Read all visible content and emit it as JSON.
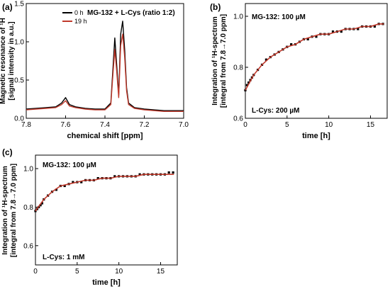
{
  "chart_data": [
    {
      "panel_label": "(a)",
      "type": "line",
      "annotation": "MG-132 + L-Cys (ratio 1:2)",
      "xlabel": "chemical shift [ppm]",
      "ylabel_lines": [
        "Magnetic resonance of ¹H",
        "[signal intensity in a.u.]"
      ],
      "xlim": [
        7.8,
        7.0
      ],
      "ylim": [
        0.0,
        1.5
      ],
      "x_ticks": [
        "7.8",
        "7.6",
        "7.4",
        "7.2",
        "7.0"
      ],
      "y_ticks": [
        "0.0",
        "0.5",
        "1.0",
        "1.5"
      ],
      "legend": [
        {
          "label": "0 h",
          "color": "#000000"
        },
        {
          "label": "19 h",
          "color": "#c0392b"
        }
      ],
      "series": [
        {
          "name": "0 h",
          "color": "#000000",
          "x": [
            7.8,
            7.75,
            7.7,
            7.65,
            7.62,
            7.6,
            7.58,
            7.55,
            7.5,
            7.45,
            7.4,
            7.37,
            7.36,
            7.35,
            7.34,
            7.33,
            7.32,
            7.31,
            7.3,
            7.29,
            7.28,
            7.25,
            7.2,
            7.15,
            7.1,
            7.05,
            7.0
          ],
          "y": [
            0.12,
            0.13,
            0.14,
            0.15,
            0.2,
            0.27,
            0.18,
            0.15,
            0.13,
            0.12,
            0.12,
            0.2,
            0.62,
            1.05,
            0.68,
            0.3,
            1.1,
            1.27,
            0.9,
            0.4,
            0.2,
            0.14,
            0.12,
            0.11,
            0.1,
            0.1,
            0.1
          ]
        },
        {
          "name": "19 h",
          "color": "#c0392b",
          "x": [
            7.8,
            7.75,
            7.7,
            7.65,
            7.62,
            7.6,
            7.58,
            7.55,
            7.5,
            7.45,
            7.4,
            7.37,
            7.36,
            7.35,
            7.34,
            7.33,
            7.32,
            7.31,
            7.3,
            7.29,
            7.28,
            7.25,
            7.2,
            7.15,
            7.1,
            7.05,
            7.0
          ],
          "y": [
            0.11,
            0.12,
            0.13,
            0.14,
            0.18,
            0.23,
            0.16,
            0.14,
            0.12,
            0.11,
            0.11,
            0.18,
            0.55,
            0.9,
            0.6,
            0.27,
            0.95,
            1.1,
            0.8,
            0.36,
            0.18,
            0.13,
            0.11,
            0.1,
            0.09,
            0.09,
            0.09
          ]
        }
      ]
    },
    {
      "panel_label": "(b)",
      "type": "scatter",
      "annotation_top": "MG-132: 100 µM",
      "annotation_bottom": "L-Cys: 200 µM",
      "xlabel": "time [h]",
      "ylabel_lines": [
        "Integration of ¹H-spectrum",
        "[integral from 7.8→7.0 ppm]"
      ],
      "xlim": [
        0,
        17
      ],
      "ylim": [
        0.6,
        1.05
      ],
      "x_ticks": [
        "0",
        "5",
        "10",
        "15"
      ],
      "y_ticks": [
        "0.6",
        "0.8",
        "1.0"
      ],
      "point_color": "#000000",
      "fit_color": "#c0392b",
      "points": {
        "x": [
          0.0,
          0.2,
          0.4,
          0.6,
          0.8,
          1.0,
          1.5,
          2.0,
          2.5,
          3.0,
          3.5,
          4.0,
          4.5,
          5.0,
          5.5,
          6.0,
          6.5,
          7.0,
          7.5,
          8.0,
          8.5,
          9.0,
          9.5,
          10.0,
          10.5,
          11.0,
          11.5,
          12.0,
          12.5,
          13.0,
          13.5,
          14.0,
          14.5,
          15.0,
          15.5,
          16.0,
          16.5
        ],
        "y": [
          0.71,
          0.73,
          0.74,
          0.75,
          0.76,
          0.77,
          0.79,
          0.81,
          0.83,
          0.84,
          0.85,
          0.86,
          0.87,
          0.88,
          0.89,
          0.89,
          0.9,
          0.91,
          0.91,
          0.92,
          0.92,
          0.93,
          0.93,
          0.93,
          0.94,
          0.94,
          0.94,
          0.95,
          0.95,
          0.95,
          0.95,
          0.96,
          0.96,
          0.96,
          0.96,
          0.97,
          0.97
        ]
      },
      "fit": {
        "x": [
          0,
          1,
          2,
          3,
          4,
          5,
          6,
          7,
          8,
          9,
          10,
          11,
          12,
          13,
          14,
          15,
          16,
          16.6
        ],
        "y": [
          0.71,
          0.77,
          0.81,
          0.84,
          0.86,
          0.88,
          0.89,
          0.91,
          0.92,
          0.93,
          0.93,
          0.94,
          0.95,
          0.95,
          0.96,
          0.96,
          0.97,
          0.97
        ]
      }
    },
    {
      "panel_label": "(c)",
      "type": "scatter",
      "annotation_top": "MG-132: 100 µM",
      "annotation_bottom": "L-Cys: 1 mM",
      "xlabel": "time [h]",
      "ylabel_lines": [
        "Integration of ¹H-spectrum",
        "[integral from 7.8→7.0 ppm]"
      ],
      "xlim": [
        0,
        17
      ],
      "ylim": [
        0.5,
        1.07
      ],
      "x_ticks": [
        "0",
        "5",
        "10",
        "15"
      ],
      "y_ticks": [
        "0.6",
        "0.8",
        "1.0"
      ],
      "point_color": "#000000",
      "fit_color": "#c0392b",
      "points": {
        "x": [
          0.0,
          0.2,
          0.4,
          0.6,
          0.8,
          1.0,
          1.5,
          2.0,
          2.5,
          3.0,
          3.5,
          4.0,
          4.5,
          5.0,
          5.5,
          6.0,
          6.5,
          7.0,
          7.5,
          8.0,
          8.5,
          9.0,
          9.5,
          10.0,
          10.5,
          11.0,
          11.5,
          12.0,
          12.5,
          13.0,
          13.5,
          14.0,
          14.5,
          15.0,
          15.5,
          16.0,
          16.5
        ],
        "y": [
          0.78,
          0.79,
          0.8,
          0.81,
          0.82,
          0.84,
          0.86,
          0.88,
          0.89,
          0.91,
          0.91,
          0.92,
          0.93,
          0.93,
          0.93,
          0.94,
          0.94,
          0.94,
          0.95,
          0.95,
          0.95,
          0.95,
          0.96,
          0.96,
          0.96,
          0.96,
          0.96,
          0.96,
          0.97,
          0.97,
          0.97,
          0.97,
          0.97,
          0.97,
          0.97,
          0.98,
          0.98
        ]
      },
      "fit": {
        "x": [
          0,
          1,
          2,
          3,
          4,
          5,
          6,
          7,
          8,
          9,
          10,
          11,
          12,
          13,
          14,
          15,
          16,
          16.6
        ],
        "y": [
          0.78,
          0.84,
          0.88,
          0.91,
          0.92,
          0.93,
          0.94,
          0.94,
          0.95,
          0.95,
          0.96,
          0.96,
          0.96,
          0.97,
          0.97,
          0.97,
          0.97,
          0.97
        ]
      }
    }
  ]
}
